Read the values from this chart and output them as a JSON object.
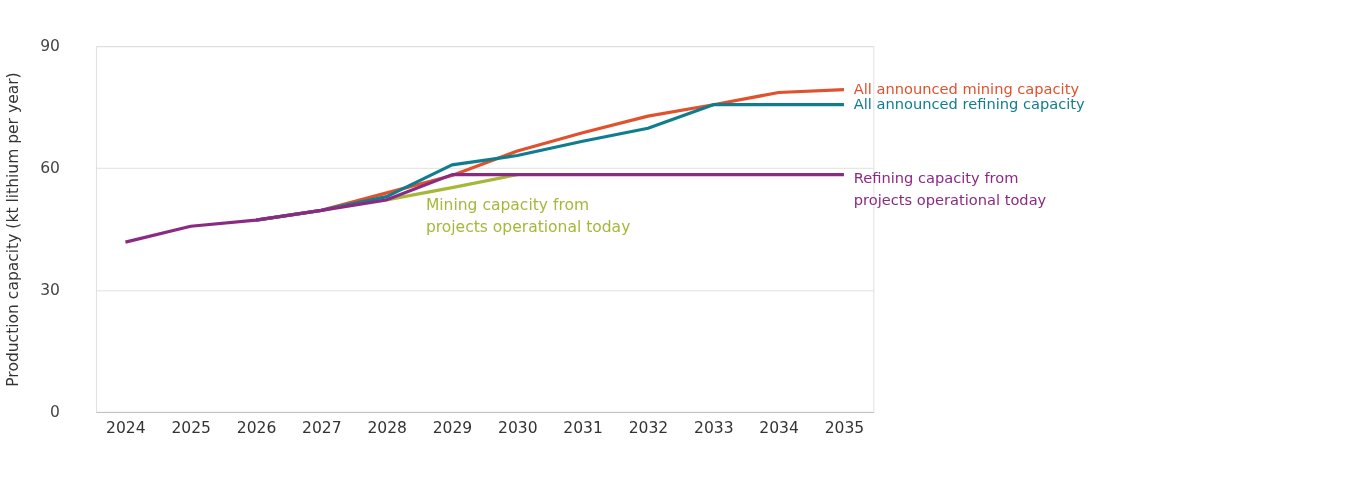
{
  "chart_data": {
    "type": "line",
    "ylabel": "Production capacity (kt lithium per year)",
    "categories": [
      "2024",
      "2025",
      "2026",
      "2027",
      "2028",
      "2029",
      "2030",
      "2031",
      "2032",
      "2033",
      "2034",
      "2035"
    ],
    "ylim": [
      0,
      90
    ],
    "yticks": [
      0,
      30,
      60,
      90
    ],
    "grid": "y",
    "marker": "none",
    "line_style": "solid",
    "series": [
      {
        "name": "Mining capacity from\nprojects operational today",
        "color": "#a5b83a",
        "values": [
          null,
          null,
          null,
          null,
          52.2,
          55.2,
          58.4,
          null,
          null,
          null,
          null,
          null
        ]
      },
      {
        "name": "All announced mining capacity",
        "color": "#e0522d",
        "values": [
          null,
          null,
          47.2,
          49.6,
          53.9,
          58.2,
          64.2,
          68.7,
          72.8,
          75.6,
          78.6,
          79.3
        ]
      },
      {
        "name": "All announced refining capacity",
        "color": "#107d8f",
        "values": [
          null,
          null,
          47.2,
          49.6,
          53.0,
          60.8,
          63.1,
          66.6,
          69.8,
          75.6,
          75.6,
          75.6
        ]
      },
      {
        "name": "Refining capacity from\nprojects operational today",
        "color": "#8b2a83",
        "values": [
          41.8,
          45.7,
          47.2,
          49.6,
          52.2,
          58.4,
          58.4,
          58.4,
          58.4,
          58.4,
          58.4,
          58.4
        ]
      }
    ]
  }
}
